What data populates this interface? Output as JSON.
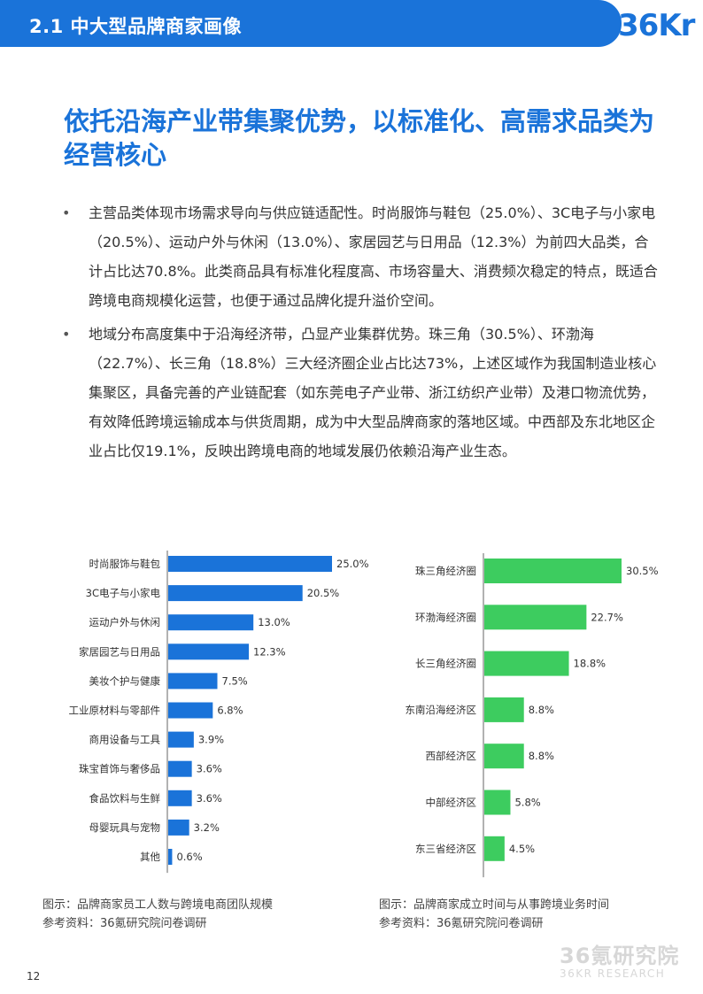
{
  "header": {
    "section_title": "2.1 中大型品牌商家画像",
    "logo_text": "36Kr",
    "brand_color": "#1a73d9"
  },
  "headline": "依托沿海产业带集聚优势，以标准化、高需求品类为经营核心",
  "bullets": [
    {
      "marker": "•",
      "text": "主营品类体现市场需求导向与供应链适配性。时尚服饰与鞋包（25.0%）、3C电子与小家电（20.5%）、运动户外与休闲（13.0%）、家居园艺与日用品（12.3%）为前四大品类，合计占比达70.8%。此类商品具有标准化程度高、市场容量大、消费频次稳定的特点，既适合跨境电商规模化运营，也便于通过品牌化提升溢价空间。"
    },
    {
      "marker": "•",
      "text": "地域分布高度集中于沿海经济带，凸显产业集群优势。珠三角（30.5%）、环渤海（22.7%）、长三角（18.8%）三大经济圈企业占比达73%，上述区域作为我国制造业核心集聚区，具备完善的产业链配套（如东莞电子产业带、浙江纺织产业带）及港口物流优势，有效降低跨境运输成本与供货周期，成为中大型品牌商家的落地区域。中西部及东北地区企业占比仅19.1%，反映出跨境电商的地域发展仍依赖沿海产业生态。"
    }
  ],
  "chart_data": [
    {
      "type": "bar",
      "orientation": "horizontal",
      "categories": [
        "时尚服饰与鞋包",
        "3C电子与小家电",
        "运动户外与休闲",
        "家居园艺与日用品",
        "美妆个护与健康",
        "工业原材料与零部件",
        "商用设备与工具",
        "珠宝首饰与奢侈品",
        "食品饮料与生鲜",
        "母婴玩具与宠物",
        "其他"
      ],
      "values": [
        25.0,
        20.5,
        13.0,
        12.3,
        7.5,
        6.8,
        3.9,
        3.6,
        3.6,
        3.2,
        0.6
      ],
      "value_labels": [
        "25.0%",
        "20.5%",
        "13.0%",
        "12.3%",
        "7.5%",
        "6.8%",
        "3.9%",
        "3.6%",
        "3.6%",
        "3.2%",
        "0.6%"
      ],
      "color": "#1a73d9",
      "xlim": [
        0,
        25
      ]
    },
    {
      "type": "bar",
      "orientation": "horizontal",
      "categories": [
        "珠三角经济圈",
        "环渤海经济圈",
        "长三角经济圈",
        "东南沿海经济区",
        "西部经济区",
        "中部经济区",
        "东三省经济区"
      ],
      "values": [
        30.5,
        22.7,
        18.8,
        8.8,
        8.8,
        5.8,
        4.5
      ],
      "value_labels": [
        "30.5%",
        "22.7%",
        "18.8%",
        "8.8%",
        "8.8%",
        "5.8%",
        "4.5%"
      ],
      "color": "#3dcc5f",
      "xlim": [
        0,
        30.5
      ]
    }
  ],
  "captions": [
    {
      "figure": "图示：品牌商家员工人数与跨境电商团队规模",
      "source": "参考资料：36氪研究院问卷调研"
    },
    {
      "figure": "图示：品牌商家成立时间与从事跨境业务时间",
      "source": "参考资料：36氪研究院问卷调研"
    }
  ],
  "watermark": {
    "main": "36氪研究院",
    "sub": "36KR RESEARCH"
  },
  "page_number": "12"
}
